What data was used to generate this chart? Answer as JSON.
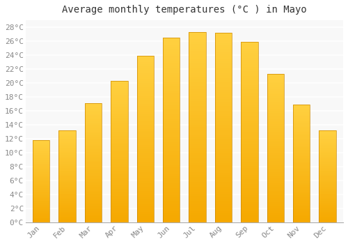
{
  "title": "Average monthly temperatures (°C ) in Mayo",
  "months": [
    "Jan",
    "Feb",
    "Mar",
    "Apr",
    "May",
    "Jun",
    "Jul",
    "Aug",
    "Sep",
    "Oct",
    "Nov",
    "Dec"
  ],
  "values": [
    11.8,
    13.2,
    17.1,
    20.3,
    23.9,
    26.5,
    27.3,
    27.2,
    25.9,
    21.3,
    16.9,
    13.2
  ],
  "bar_color_bottom": "#F5A800",
  "bar_color_top": "#FFD040",
  "bar_edge_color": "#CC8800",
  "background_color": "#FFFFFF",
  "plot_bg_color": "#F8F8F8",
  "grid_color": "#DDDDDD",
  "text_color": "#888888",
  "title_color": "#333333",
  "ylim": [
    0,
    29
  ],
  "ytick_step": 2,
  "title_fontsize": 10,
  "tick_fontsize": 8,
  "font_family": "monospace",
  "bar_width": 0.65,
  "n_grad": 80
}
